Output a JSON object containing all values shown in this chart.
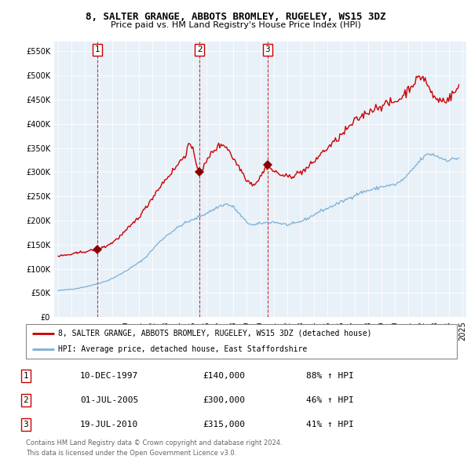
{
  "title": "8, SALTER GRANGE, ABBOTS BROMLEY, RUGELEY, WS15 3DZ",
  "subtitle": "Price paid vs. HM Land Registry's House Price Index (HPI)",
  "ylim": [
    0,
    570000
  ],
  "yticks": [
    0,
    50000,
    100000,
    150000,
    200000,
    250000,
    300000,
    350000,
    400000,
    450000,
    500000,
    550000
  ],
  "sales": [
    {
      "date_num": 1997.92,
      "price": 140000,
      "label": "1"
    },
    {
      "date_num": 2005.5,
      "price": 300000,
      "label": "2"
    },
    {
      "date_num": 2010.54,
      "price": 315000,
      "label": "3"
    }
  ],
  "legend_sale_label": "8, SALTER GRANGE, ABBOTS BROMLEY, RUGELEY, WS15 3DZ (detached house)",
  "legend_hpi_label": "HPI: Average price, detached house, East Staffordshire",
  "sale_color": "#cc0000",
  "sale_dot_color": "#880000",
  "hpi_color": "#7ab0d4",
  "chart_bg": "#e8f0f8",
  "table_rows": [
    [
      "1",
      "10-DEC-1997",
      "£140,000",
      "88% ↑ HPI"
    ],
    [
      "2",
      "01-JUL-2005",
      "£300,000",
      "46% ↑ HPI"
    ],
    [
      "3",
      "19-JUL-2010",
      "£315,000",
      "41% ↑ HPI"
    ]
  ],
  "footnote1": "Contains HM Land Registry data © Crown copyright and database right 2024.",
  "footnote2": "This data is licensed under the Open Government Licence v3.0.",
  "grid_color": "#ffffff"
}
